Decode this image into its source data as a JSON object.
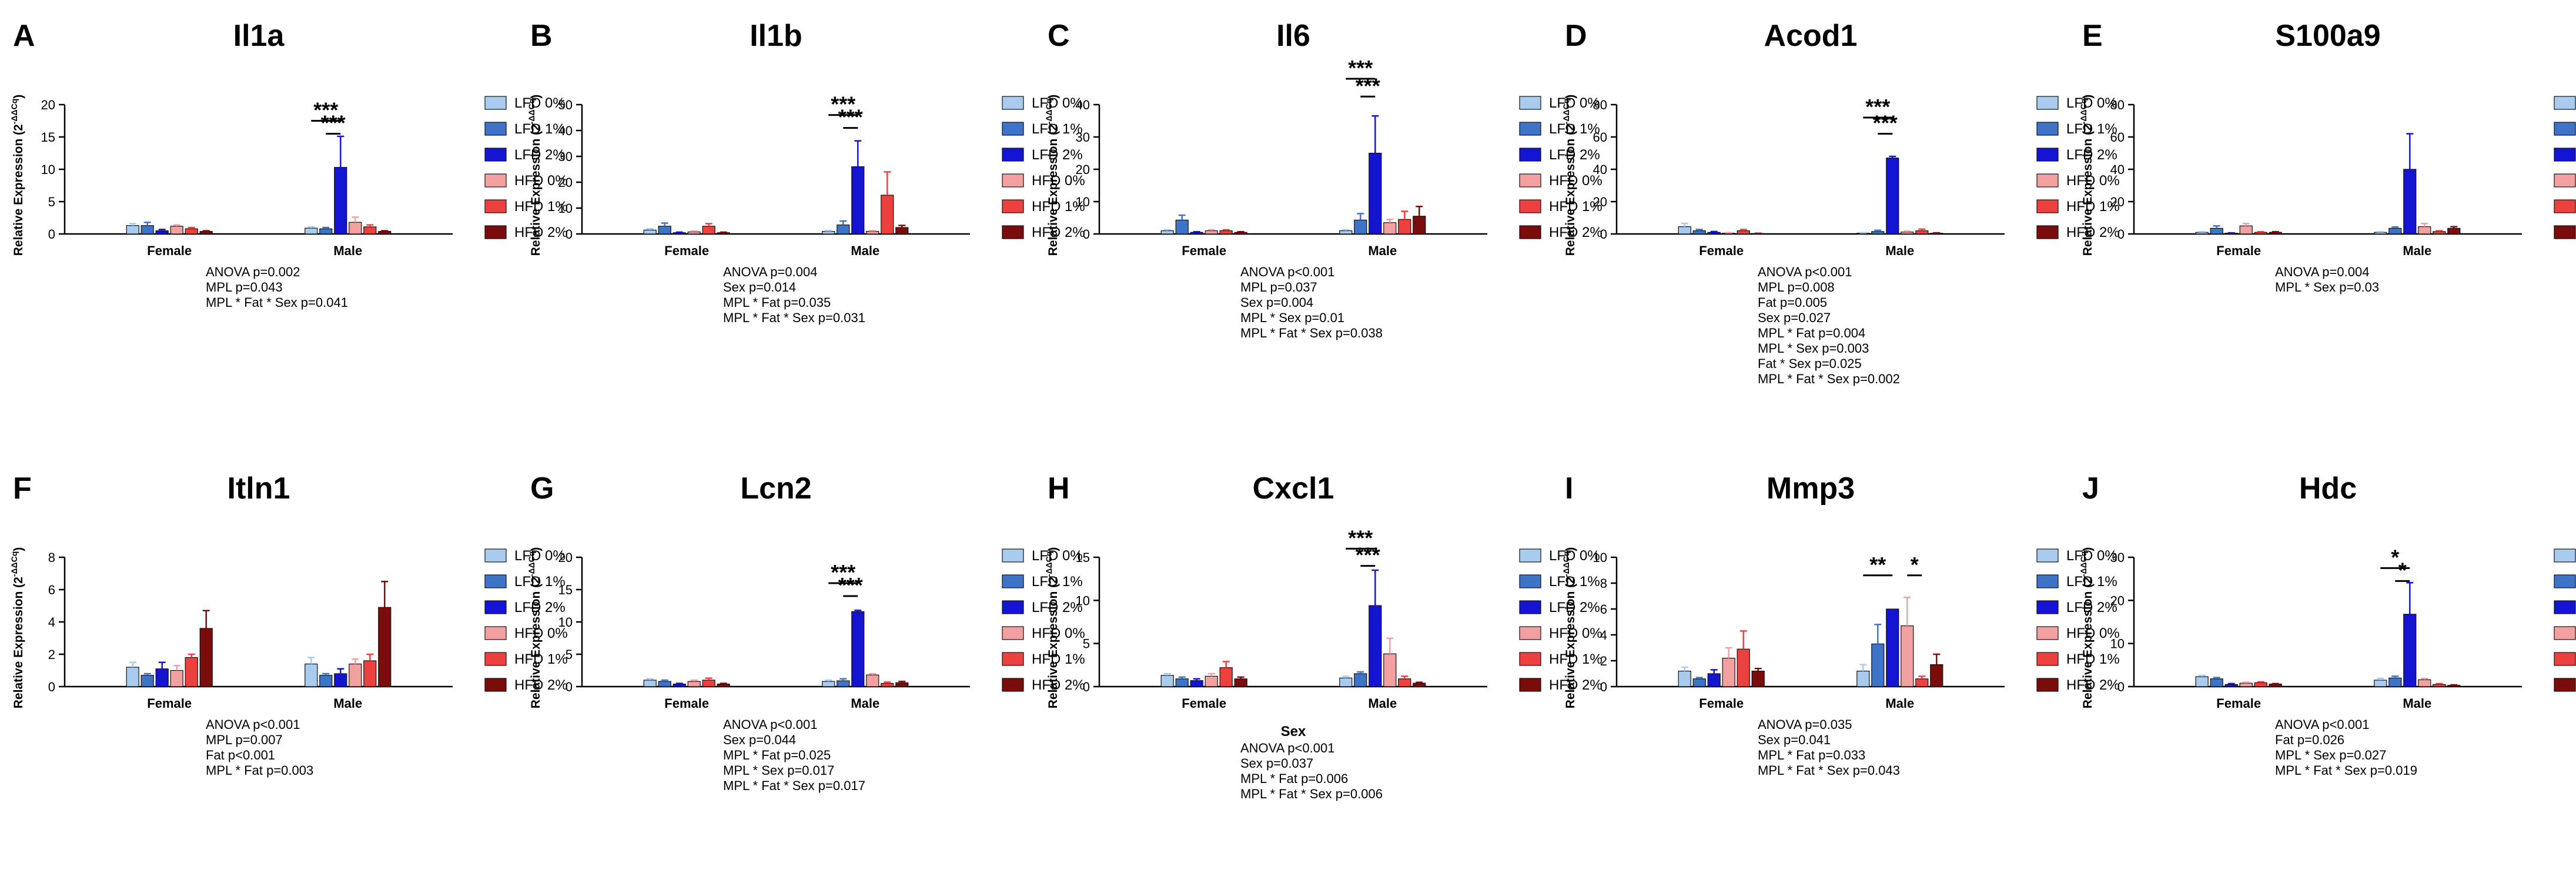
{
  "figure": {
    "legend_labels": [
      "LFD 0%",
      "LFD 1%",
      "LFD 2%",
      "HFD 0%",
      "HFD 1%",
      "HFD 2%"
    ],
    "series_colors": [
      "#a9cbee",
      "#3d74c8",
      "#1414d2",
      "#f2a0a0",
      "#ef4040",
      "#7a0c0c"
    ],
    "groups": [
      "Female",
      "Male"
    ],
    "ylabel": "Relative Expression (2",
    "ylabel_sup": "-ΔΔCq",
    "ylabel_close": ")"
  },
  "chart_data": [
    {
      "type": "bar",
      "panel": "A",
      "title": "Il1a",
      "ylim": [
        0,
        20
      ],
      "yticks": [
        0,
        5,
        10,
        15,
        20
      ],
      "categories": [
        "Female",
        "Male"
      ],
      "xlabel": "",
      "series": [
        {
          "name": "LFD 0%",
          "values": [
            1.3,
            0.9
          ],
          "err": [
            0.3,
            0.2
          ]
        },
        {
          "name": "LFD 1%",
          "values": [
            1.3,
            0.8
          ],
          "err": [
            0.5,
            0.2
          ]
        },
        {
          "name": "LFD 2%",
          "values": [
            0.5,
            10.3
          ],
          "err": [
            0.2,
            4.8
          ]
        },
        {
          "name": "HFD 0%",
          "values": [
            1.2,
            1.8
          ],
          "err": [
            0.2,
            0.8
          ]
        },
        {
          "name": "HFD 1%",
          "values": [
            0.8,
            1.1
          ],
          "err": [
            0.2,
            0.3
          ]
        },
        {
          "name": "HFD 2%",
          "values": [
            0.4,
            0.4
          ],
          "err": [
            0.1,
            0.1
          ]
        }
      ],
      "sig": [
        {
          "label": "***",
          "from": [
            1,
            0
          ],
          "to": [
            1,
            2
          ],
          "y": 17.5
        },
        {
          "label": "***",
          "from": [
            1,
            1
          ],
          "to": [
            1,
            2
          ],
          "y": 15.5
        }
      ],
      "stats": [
        "ANOVA p=0.002",
        "MPL p=0.043",
        "MPL * Fat * Sex p=0.041"
      ]
    },
    {
      "type": "bar",
      "panel": "B",
      "title": "Il1b",
      "ylim": [
        0,
        50
      ],
      "yticks": [
        0,
        10,
        20,
        30,
        40,
        50
      ],
      "categories": [
        "Female",
        "Male"
      ],
      "xlabel": "",
      "series": [
        {
          "name": "LFD 0%",
          "values": [
            1.5,
            1.0
          ],
          "err": [
            0.5,
            0.3
          ]
        },
        {
          "name": "LFD 1%",
          "values": [
            3.0,
            3.5
          ],
          "err": [
            1.2,
            1.5
          ]
        },
        {
          "name": "LFD 2%",
          "values": [
            0.5,
            26.0
          ],
          "err": [
            0.2,
            10.0
          ]
        },
        {
          "name": "HFD 0%",
          "values": [
            0.8,
            1.0
          ],
          "err": [
            0.3,
            0.3
          ]
        },
        {
          "name": "HFD 1%",
          "values": [
            3.0,
            15.0
          ],
          "err": [
            1.0,
            9.0
          ]
        },
        {
          "name": "HFD 2%",
          "values": [
            0.5,
            2.5
          ],
          "err": [
            0.2,
            0.8
          ]
        }
      ],
      "sig": [
        {
          "label": "***",
          "from": [
            1,
            0
          ],
          "to": [
            1,
            2
          ],
          "y": 46
        },
        {
          "label": "***",
          "from": [
            1,
            1
          ],
          "to": [
            1,
            2
          ],
          "y": 41
        }
      ],
      "stats": [
        "ANOVA p=0.004",
        "Sex p=0.014",
        "MPL * Fat p=0.035",
        "MPL * Fat * Sex p=0.031"
      ]
    },
    {
      "type": "bar",
      "panel": "C",
      "title": "Il6",
      "ylim": [
        0,
        40
      ],
      "yticks": [
        0,
        10,
        20,
        30,
        40
      ],
      "categories": [
        "Female",
        "Male"
      ],
      "xlabel": "",
      "series": [
        {
          "name": "LFD 0%",
          "values": [
            1.0,
            1.0
          ],
          "err": [
            0.3,
            0.3
          ]
        },
        {
          "name": "LFD 1%",
          "values": [
            4.3,
            4.3
          ],
          "err": [
            1.5,
            2.0
          ]
        },
        {
          "name": "LFD 2%",
          "values": [
            0.5,
            25.0
          ],
          "err": [
            0.2,
            11.5
          ]
        },
        {
          "name": "HFD 0%",
          "values": [
            1.0,
            3.5
          ],
          "err": [
            0.3,
            1.0
          ]
        },
        {
          "name": "HFD 1%",
          "values": [
            1.0,
            4.5
          ],
          "err": [
            0.3,
            2.5
          ]
        },
        {
          "name": "HFD 2%",
          "values": [
            0.5,
            5.5
          ],
          "err": [
            0.2,
            3.0
          ]
        }
      ],
      "sig": [
        {
          "label": "***",
          "from": [
            1,
            0
          ],
          "to": [
            1,
            2
          ],
          "y": 48
        },
        {
          "label": "***",
          "from": [
            1,
            1
          ],
          "to": [
            1,
            2
          ],
          "y": 42.5
        }
      ],
      "stats": [
        "ANOVA p<0.001",
        "MPL p=0.037",
        "Sex p=0.004",
        "MPL * Sex p=0.01",
        "MPL * Fat * Sex p=0.038"
      ]
    },
    {
      "type": "bar",
      "panel": "D",
      "title": "Acod1",
      "ylim": [
        0,
        80
      ],
      "yticks": [
        0,
        20,
        40,
        60,
        80
      ],
      "categories": [
        "Female",
        "Male"
      ],
      "xlabel": "",
      "series": [
        {
          "name": "LFD 0%",
          "values": [
            4.5,
            0.5
          ],
          "err": [
            2.0,
            0.3
          ]
        },
        {
          "name": "LFD 1%",
          "values": [
            2.0,
            1.5
          ],
          "err": [
            0.8,
            0.8
          ]
        },
        {
          "name": "LFD 2%",
          "values": [
            1.0,
            47.0
          ],
          "err": [
            0.5,
            1.0
          ]
        },
        {
          "name": "HFD 0%",
          "values": [
            0.5,
            1.2
          ],
          "err": [
            0.3,
            0.5
          ]
        },
        {
          "name": "HFD 1%",
          "values": [
            2.0,
            2.0
          ],
          "err": [
            0.8,
            1.0
          ]
        },
        {
          "name": "HFD 2%",
          "values": [
            0.3,
            0.5
          ],
          "err": [
            0.1,
            0.2
          ]
        }
      ],
      "sig": [
        {
          "label": "***",
          "from": [
            1,
            0
          ],
          "to": [
            1,
            2
          ],
          "y": 72
        },
        {
          "label": "***",
          "from": [
            1,
            1
          ],
          "to": [
            1,
            2
          ],
          "y": 62
        }
      ],
      "stats": [
        "ANOVA p<0.001",
        "MPL p=0.008",
        "Fat p=0.005",
        "Sex p=0.027",
        "MPL * Fat p=0.004",
        "MPL * Sex p=0.003",
        "Fat * Sex p=0.025",
        "MPL * Fat * Sex p=0.002"
      ]
    },
    {
      "type": "bar",
      "panel": "E",
      "title": "S100a9",
      "ylim": [
        0,
        80
      ],
      "yticks": [
        0,
        20,
        40,
        60,
        80
      ],
      "categories": [
        "Female",
        "Male"
      ],
      "xlabel": "",
      "series": [
        {
          "name": "LFD 0%",
          "values": [
            1.0,
            1.0
          ],
          "err": [
            0.4,
            0.4
          ]
        },
        {
          "name": "LFD 1%",
          "values": [
            3.5,
            3.5
          ],
          "err": [
            1.5,
            0.8
          ]
        },
        {
          "name": "LFD 2%",
          "values": [
            0.5,
            40.0
          ],
          "err": [
            0.2,
            22.0
          ]
        },
        {
          "name": "HFD 0%",
          "values": [
            5.0,
            4.5
          ],
          "err": [
            1.5,
            2.0
          ]
        },
        {
          "name": "HFD 1%",
          "values": [
            1.0,
            1.5
          ],
          "err": [
            0.4,
            0.5
          ]
        },
        {
          "name": "HFD 2%",
          "values": [
            1.0,
            3.5
          ],
          "err": [
            0.4,
            1.0
          ]
        }
      ],
      "sig": [],
      "stats": [
        "ANOVA p=0.004",
        "MPL * Sex p=0.03"
      ]
    },
    {
      "type": "bar",
      "panel": "F",
      "title": "Itln1",
      "ylim": [
        0,
        8
      ],
      "yticks": [
        0,
        2,
        4,
        6,
        8
      ],
      "categories": [
        "Female",
        "Male"
      ],
      "xlabel": "",
      "series": [
        {
          "name": "LFD 0%",
          "values": [
            1.2,
            1.4
          ],
          "err": [
            0.3,
            0.4
          ]
        },
        {
          "name": "LFD 1%",
          "values": [
            0.7,
            0.7
          ],
          "err": [
            0.1,
            0.1
          ]
        },
        {
          "name": "LFD 2%",
          "values": [
            1.1,
            0.8
          ],
          "err": [
            0.4,
            0.3
          ]
        },
        {
          "name": "HFD 0%",
          "values": [
            1.0,
            1.4
          ],
          "err": [
            0.3,
            0.3
          ]
        },
        {
          "name": "HFD 1%",
          "values": [
            1.8,
            1.6
          ],
          "err": [
            0.2,
            0.4
          ]
        },
        {
          "name": "HFD 2%",
          "values": [
            3.6,
            4.9
          ],
          "err": [
            1.1,
            1.6
          ]
        }
      ],
      "sig": [],
      "stats": [
        "ANOVA p<0.001",
        "MPL p=0.007",
        "Fat p<0.001",
        "MPL * Fat p=0.003"
      ]
    },
    {
      "type": "bar",
      "panel": "G",
      "title": "Lcn2",
      "ylim": [
        0,
        20
      ],
      "yticks": [
        0,
        5,
        10,
        15,
        20
      ],
      "categories": [
        "Female",
        "Male"
      ],
      "xlabel": "",
      "series": [
        {
          "name": "LFD 0%",
          "values": [
            1.0,
            0.8
          ],
          "err": [
            0.2,
            0.2
          ]
        },
        {
          "name": "LFD 1%",
          "values": [
            0.8,
            0.9
          ],
          "err": [
            0.2,
            0.3
          ]
        },
        {
          "name": "LFD 2%",
          "values": [
            0.4,
            11.6
          ],
          "err": [
            0.1,
            0.2
          ]
        },
        {
          "name": "HFD 0%",
          "values": [
            0.8,
            1.8
          ],
          "err": [
            0.2,
            0.2
          ]
        },
        {
          "name": "HFD 1%",
          "values": [
            1.0,
            0.5
          ],
          "err": [
            0.3,
            0.2
          ]
        },
        {
          "name": "HFD 2%",
          "values": [
            0.4,
            0.6
          ],
          "err": [
            0.1,
            0.2
          ]
        }
      ],
      "sig": [
        {
          "label": "***",
          "from": [
            1,
            0
          ],
          "to": [
            1,
            2
          ],
          "y": 16
        },
        {
          "label": "***",
          "from": [
            1,
            1
          ],
          "to": [
            1,
            2
          ],
          "y": 14
        }
      ],
      "stats": [
        "ANOVA p<0.001",
        "Sex p=0.044",
        "MPL * Fat p=0.025",
        "MPL * Sex p=0.017",
        "MPL * Fat * Sex p=0.017"
      ]
    },
    {
      "type": "bar",
      "panel": "H",
      "title": "Cxcl1",
      "ylim": [
        0,
        15
      ],
      "yticks": [
        0,
        5,
        10,
        15
      ],
      "categories": [
        "Female",
        "Male"
      ],
      "xlabel": "Sex",
      "series": [
        {
          "name": "LFD 0%",
          "values": [
            1.3,
            1.0
          ],
          "err": [
            0.2,
            0.2
          ]
        },
        {
          "name": "LFD 1%",
          "values": [
            0.9,
            1.5
          ],
          "err": [
            0.2,
            0.2
          ]
        },
        {
          "name": "LFD 2%",
          "values": [
            0.7,
            9.4
          ],
          "err": [
            0.2,
            4.1
          ]
        },
        {
          "name": "HFD 0%",
          "values": [
            1.2,
            3.8
          ],
          "err": [
            0.3,
            1.8
          ]
        },
        {
          "name": "HFD 1%",
          "values": [
            2.2,
            0.9
          ],
          "err": [
            0.7,
            0.3
          ]
        },
        {
          "name": "HFD 2%",
          "values": [
            0.9,
            0.4
          ],
          "err": [
            0.2,
            0.1
          ]
        }
      ],
      "sig": [
        {
          "label": "***",
          "from": [
            1,
            0
          ],
          "to": [
            1,
            2
          ],
          "y": 16
        },
        {
          "label": "***",
          "from": [
            1,
            1
          ],
          "to": [
            1,
            2
          ],
          "y": 14
        }
      ],
      "stats": [
        "ANOVA p<0.001",
        "Sex p=0.037",
        "MPL * Fat p=0.006",
        "MPL * Fat * Sex p=0.006"
      ]
    },
    {
      "type": "bar",
      "panel": "I",
      "title": "Mmp3",
      "ylim": [
        0,
        10
      ],
      "yticks": [
        0,
        2,
        4,
        6,
        8,
        10
      ],
      "categories": [
        "Female",
        "Male"
      ],
      "xlabel": "",
      "series": [
        {
          "name": "LFD 0%",
          "values": [
            1.2,
            1.2
          ],
          "err": [
            0.3,
            0.5
          ]
        },
        {
          "name": "LFD 1%",
          "values": [
            0.6,
            3.3
          ],
          "err": [
            0.1,
            1.5
          ]
        },
        {
          "name": "LFD 2%",
          "values": [
            1.0,
            6.0
          ],
          "err": [
            0.3,
            0.0
          ]
        },
        {
          "name": "HFD 0%",
          "values": [
            2.2,
            4.7
          ],
          "err": [
            0.8,
            2.2
          ]
        },
        {
          "name": "HFD 1%",
          "values": [
            2.9,
            0.6
          ],
          "err": [
            1.4,
            0.2
          ]
        },
        {
          "name": "HFD 2%",
          "values": [
            1.2,
            1.7
          ],
          "err": [
            0.2,
            0.8
          ]
        }
      ],
      "sig": [
        {
          "label": "**",
          "from": [
            1,
            0
          ],
          "to": [
            1,
            2
          ],
          "y": 8.6
        },
        {
          "label": "*",
          "from": [
            1,
            3
          ],
          "to": [
            1,
            4
          ],
          "y": 8.6
        }
      ],
      "stats": [
        "ANOVA p=0.035",
        "Sex p=0.041",
        "MPL * Fat p=0.033",
        "MPL * Fat * Sex p=0.043"
      ]
    },
    {
      "type": "bar",
      "panel": "J",
      "title": "Hdc",
      "ylim": [
        0,
        30
      ],
      "yticks": [
        0,
        10,
        20,
        30
      ],
      "categories": [
        "Female",
        "Male"
      ],
      "xlabel": "",
      "series": [
        {
          "name": "LFD 0%",
          "values": [
            2.3,
            1.5
          ],
          "err": [
            0.3,
            0.4
          ]
        },
        {
          "name": "LFD 1%",
          "values": [
            1.8,
            2.0
          ],
          "err": [
            0.3,
            0.4
          ]
        },
        {
          "name": "LFD 2%",
          "values": [
            0.5,
            16.8
          ],
          "err": [
            0.2,
            7.3
          ]
        },
        {
          "name": "HFD 0%",
          "values": [
            0.8,
            1.6
          ],
          "err": [
            0.2,
            0.3
          ]
        },
        {
          "name": "HFD 1%",
          "values": [
            0.9,
            0.5
          ],
          "err": [
            0.2,
            0.2
          ]
        },
        {
          "name": "HFD 2%",
          "values": [
            0.6,
            0.3
          ],
          "err": [
            0.1,
            0.1
          ]
        }
      ],
      "sig": [
        {
          "label": "*",
          "from": [
            1,
            0
          ],
          "to": [
            1,
            2
          ],
          "y": 27.5
        },
        {
          "label": "*",
          "from": [
            1,
            1
          ],
          "to": [
            1,
            2
          ],
          "y": 24.5
        }
      ],
      "stats": [
        "ANOVA p<0.001",
        "Fat p=0.026",
        "MPL * Sex p=0.027",
        "MPL * Fat * Sex p=0.019"
      ]
    }
  ]
}
